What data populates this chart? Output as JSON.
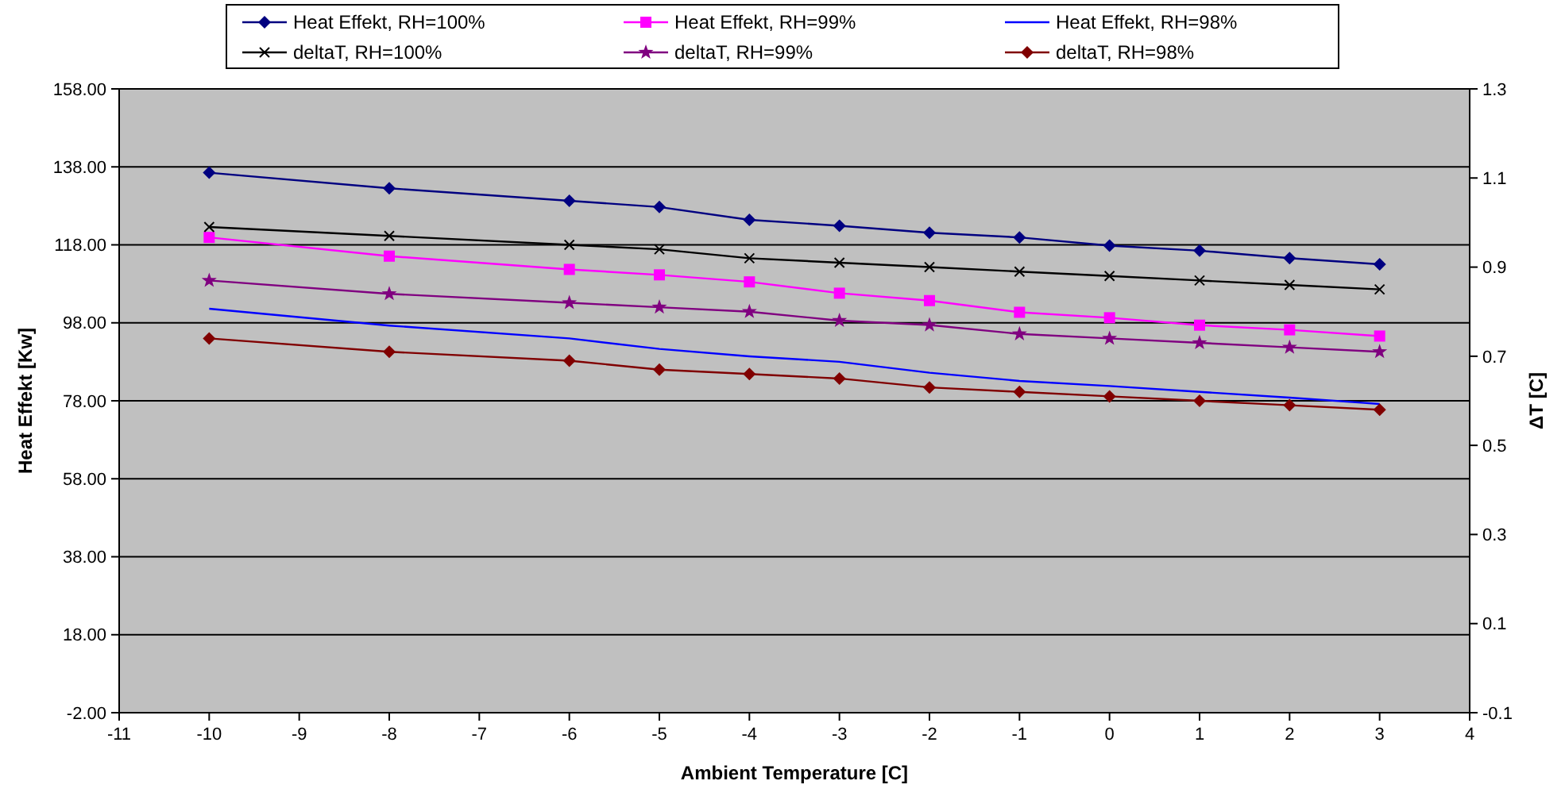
{
  "chart_data": {
    "type": "line",
    "xlabel": "Ambient Temperature [C]",
    "ylabel": "Heat Effekt [Kw]",
    "y2label": "ΔT [C]",
    "x": [
      -10,
      -8,
      -6,
      -5,
      -4,
      -3,
      -2,
      -1,
      0,
      1,
      2,
      3
    ],
    "xlim": [
      -11,
      4
    ],
    "xticks": [
      -11,
      -10,
      -9,
      -8,
      -7,
      -6,
      -5,
      -4,
      -3,
      -2,
      -1,
      0,
      1,
      2,
      3,
      4
    ],
    "ylim": [
      -2,
      158
    ],
    "yticks": [
      {
        "value": -2,
        "label": "-2.00"
      },
      {
        "value": 18,
        "label": "18.00"
      },
      {
        "value": 38,
        "label": "38.00"
      },
      {
        "value": 58,
        "label": "58.00"
      },
      {
        "value": 78,
        "label": "78.00"
      },
      {
        "value": 98,
        "label": "98.00"
      },
      {
        "value": 118,
        "label": "118.00"
      },
      {
        "value": 138,
        "label": "138.00"
      },
      {
        "value": 158,
        "label": "158.00"
      }
    ],
    "y2lim": [
      -0.1,
      1.3
    ],
    "y2ticks": [
      -0.1,
      0.1,
      0.3,
      0.5,
      0.7,
      0.9,
      1.1,
      1.3
    ],
    "grid": "y",
    "legend": "top",
    "line_style": "solid",
    "series": [
      {
        "name": "Heat Effekt, RH=100%",
        "color": "#000080",
        "marker": "diamond",
        "values": [
          136.5,
          132.5,
          129.3,
          127.7,
          124.4,
          122.9,
          121.1,
          119.9,
          117.8,
          116.5,
          114.6,
          113.0
        ]
      },
      {
        "name": "Heat Effekt, RH=99%",
        "color": "#ff00ff",
        "marker": "square",
        "values": [
          119.9,
          115.1,
          111.7,
          110.3,
          108.5,
          105.6,
          103.7,
          100.7,
          99.3,
          97.4,
          96.2,
          94.6
        ]
      },
      {
        "name": "Heat Effekt, RH=98%",
        "color": "#0000ff",
        "marker": "none",
        "values": [
          101.6,
          97.3,
          94.0,
          91.3,
          89.4,
          88.0,
          85.2,
          83.1,
          81.8,
          80.3,
          78.8,
          77.2
        ]
      },
      {
        "name": "deltaT, RH=100%",
        "color": "#000000",
        "marker": "cross",
        "axis": "y2",
        "values": [
          0.99,
          0.97,
          0.95,
          0.94,
          0.92,
          0.91,
          0.9,
          0.89,
          0.88,
          0.87,
          0.86,
          0.85
        ]
      },
      {
        "name": "deltaT, RH=99%",
        "color": "#800080",
        "marker": "star",
        "axis": "y2",
        "values": [
          0.87,
          0.84,
          0.82,
          0.81,
          0.8,
          0.78,
          0.77,
          0.75,
          0.74,
          0.73,
          0.72,
          0.71
        ]
      },
      {
        "name": "deltaT, RH=98%",
        "color": "#800000",
        "marker": "diamond",
        "axis": "y2",
        "values": [
          0.74,
          0.71,
          0.69,
          0.67,
          0.66,
          0.65,
          0.63,
          0.62,
          0.61,
          0.6,
          0.59,
          0.58
        ]
      }
    ]
  }
}
